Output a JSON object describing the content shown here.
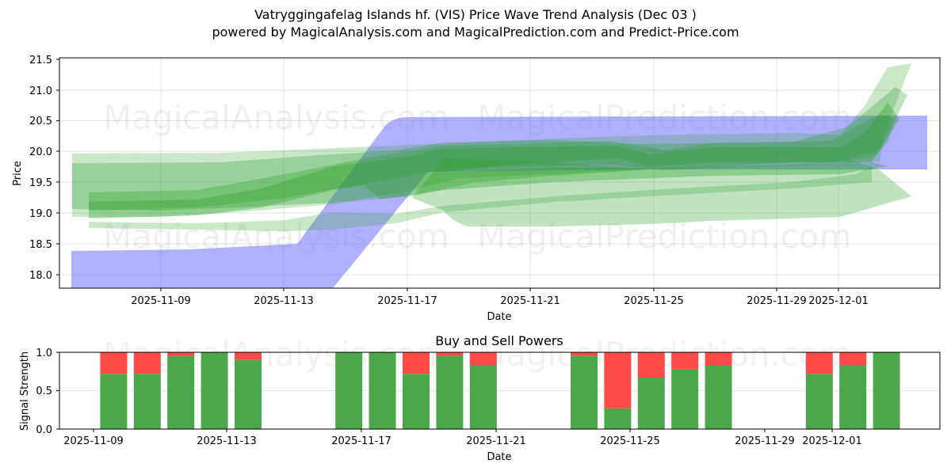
{
  "header": {
    "title": "Vatryggingafelag Islands hf. (VIS) Price Wave Trend Analysis (Dec 03 )",
    "subtitle": "powered by MagicalAnalysis.com and MagicalPrediction.com and Predict-Price.com"
  },
  "watermarks": {
    "analysis": "MagicalAnalysis.com",
    "prediction": "MagicalPrediction.com"
  },
  "colors": {
    "wave_green": "#2ca02c",
    "band_blue": "#7b7bff",
    "buy_green": "#4ca64c",
    "sell_red": "#ff4a4a"
  },
  "chart_data": [
    {
      "type": "area",
      "title": "Price Wave Trend Analysis",
      "xlabel": "Date",
      "ylabel": "Price",
      "ylim": [
        17.78,
        21.55
      ],
      "yticks": [
        "18.0",
        "18.5",
        "19.0",
        "19.5",
        "20.0",
        "20.5",
        "21.0",
        "21.5"
      ],
      "xticks": [
        "2025-11-09",
        "2025-11-13",
        "2025-11-17",
        "2025-11-21",
        "2025-11-25",
        "2025-11-29",
        "2025-12-01"
      ],
      "grid": true,
      "series": [
        {
          "name": "blue-trend-band",
          "x": [
            "2025-11-06",
            "2025-11-13",
            "2025-11-17",
            "2025-12-04"
          ],
          "lower": [
            17.6,
            17.6,
            19.75,
            19.7
          ],
          "upper": [
            18.38,
            18.5,
            20.55,
            20.58
          ]
        },
        {
          "name": "green-wave-upper-envelope",
          "x": [
            "2025-11-06",
            "2025-11-13",
            "2025-11-17",
            "2025-11-21",
            "2025-11-25",
            "2025-12-01",
            "2025-12-03"
          ],
          "values": [
            19.95,
            19.98,
            20.05,
            20.2,
            20.15,
            20.3,
            21.4
          ]
        },
        {
          "name": "green-wave-center",
          "x": [
            "2025-11-07",
            "2025-11-13",
            "2025-11-17",
            "2025-11-21",
            "2025-11-25",
            "2025-12-01",
            "2025-12-03"
          ],
          "values": [
            19.05,
            19.5,
            19.85,
            20.0,
            19.9,
            20.0,
            20.5
          ]
        },
        {
          "name": "green-wave-lower-envelope",
          "x": [
            "2025-11-06",
            "2025-11-13",
            "2025-11-17",
            "2025-11-19",
            "2025-11-25",
            "2025-12-01",
            "2025-12-03"
          ],
          "values": [
            18.9,
            18.85,
            18.95,
            18.78,
            18.8,
            18.92,
            19.6
          ]
        }
      ]
    },
    {
      "type": "bar",
      "title": "Buy and Sell Powers",
      "xlabel": "Date",
      "ylabel": "Signal Strength",
      "ylim": [
        0,
        1
      ],
      "yticks": [
        "0.0",
        "0.5",
        "1.0"
      ],
      "xticks": [
        "2025-11-09",
        "2025-11-13",
        "2025-11-17",
        "2025-11-21",
        "2025-11-25",
        "2025-11-29",
        "2025-12-01"
      ],
      "stacked": true,
      "categories": [
        "2025-11-10",
        "2025-11-11",
        "2025-11-12",
        "2025-11-13",
        "2025-11-14",
        "2025-11-17",
        "2025-11-18",
        "2025-11-19",
        "2025-11-20",
        "2025-11-21",
        "2025-11-24",
        "2025-11-25",
        "2025-11-26",
        "2025-11-27",
        "2025-11-28",
        "2025-12-01",
        "2025-12-02",
        "2025-12-03"
      ],
      "series": [
        {
          "name": "Buy",
          "color": "#4ca64c",
          "values": [
            0.72,
            0.72,
            0.95,
            1.0,
            0.9,
            1.0,
            1.0,
            0.72,
            0.95,
            0.83,
            0.95,
            0.27,
            0.67,
            0.78,
            0.83,
            0.72,
            0.83,
            1.0
          ]
        },
        {
          "name": "Sell",
          "color": "#ff4a4a",
          "values": [
            0.28,
            0.28,
            0.05,
            0.0,
            0.1,
            0.0,
            0.0,
            0.28,
            0.05,
            0.17,
            0.05,
            0.73,
            0.33,
            0.22,
            0.17,
            0.28,
            0.17,
            0.0
          ]
        }
      ]
    }
  ]
}
